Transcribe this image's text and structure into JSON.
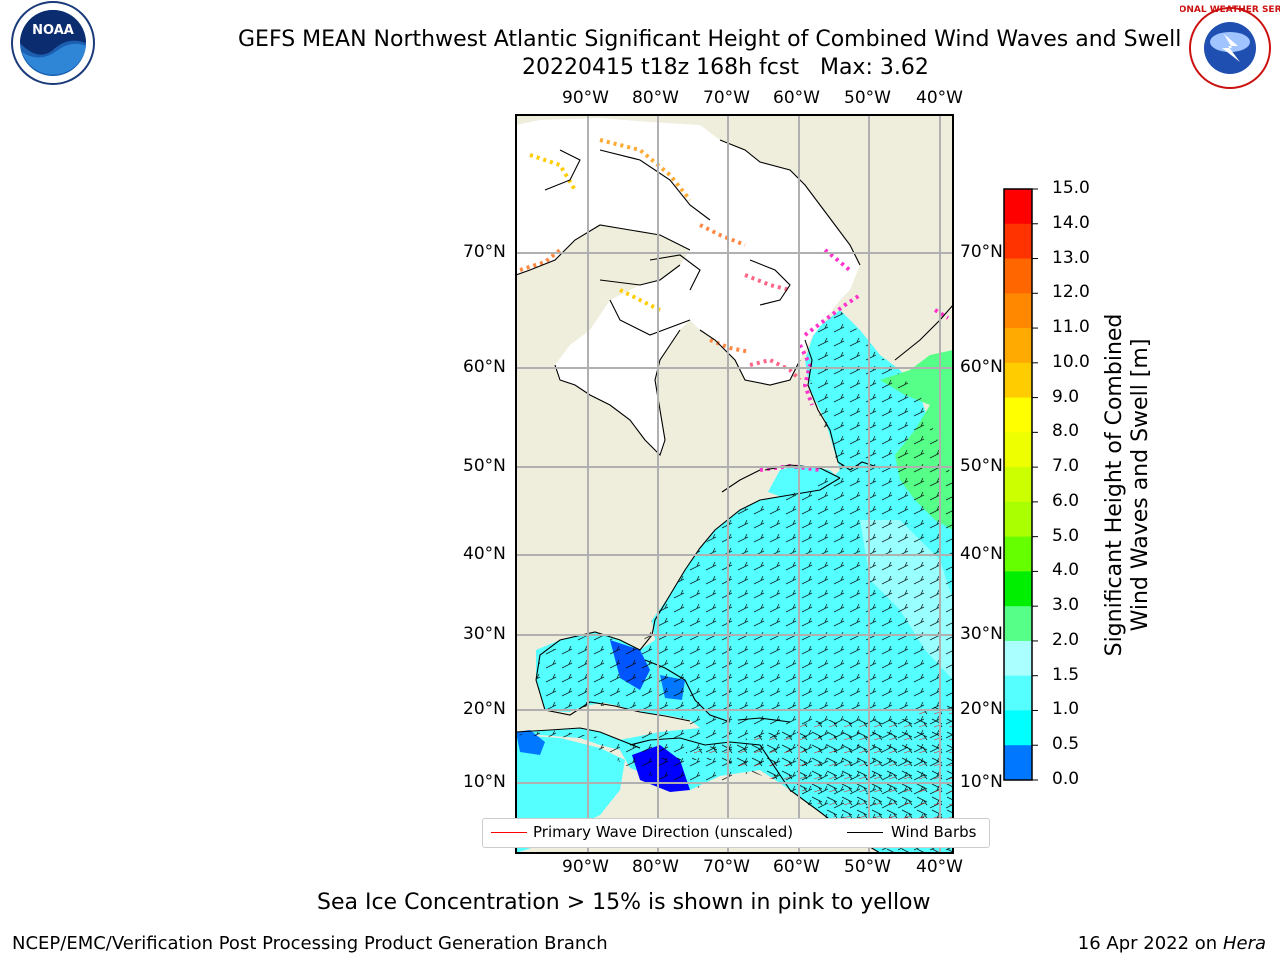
{
  "title": "GEFS MEAN Northwest Atlantic Significant Height of Combined Wind Waves and Swell",
  "subtitle": "20220415 t18z 168h fcst   Max: 3.62",
  "logos": {
    "left": {
      "name": "noaa-logo",
      "text": "NOAA"
    },
    "right": {
      "name": "nws-logo",
      "text": "NATIONAL WEATHER SERVICE"
    }
  },
  "map": {
    "lon_labels_top": [
      "90°W",
      "80°W",
      "70°W",
      "60°W",
      "50°W",
      "40°W"
    ],
    "lon_labels_bottom": [
      "90°W",
      "80°W",
      "70°W",
      "60°W",
      "50°W",
      "40°W"
    ],
    "lat_labels_left": [
      "70°N",
      "60°N",
      "50°N",
      "40°N",
      "30°N",
      "20°N",
      "10°N"
    ],
    "lat_labels_right": [
      "70°N",
      "60°N",
      "50°N",
      "40°N",
      "30°N",
      "20°N",
      "10°N"
    ],
    "land_color": "#efeddb",
    "ice_color": "#ffffff",
    "grid_color": "#b0b0b0"
  },
  "colorbar": {
    "label_line1": "Significant Height of Combined",
    "label_line2": "Wind Waves and Swell [m]",
    "ticks": [
      "15.0",
      "14.0",
      "13.0",
      "12.0",
      "11.0",
      "10.0",
      "9.0",
      "8.0",
      "7.0",
      "6.0",
      "5.0",
      "4.0",
      "3.0",
      "2.0",
      "1.5",
      "1.0",
      "0.5",
      "0.0"
    ],
    "colors_top_to_bottom": [
      "#ff0000",
      "#ff3300",
      "#ff6600",
      "#ff8800",
      "#ffaa00",
      "#ffcc00",
      "#ffff00",
      "#eeff00",
      "#ccff00",
      "#aaff00",
      "#66ff00",
      "#00ee00",
      "#55ff88",
      "#aaffff",
      "#55ffff",
      "#00ffff",
      "#0077ff",
      "#0000ff"
    ]
  },
  "legend": {
    "primary_wave_label": "Primary Wave Direction (unscaled)",
    "primary_wave_color": "#ff0000",
    "wind_barbs_label": "Wind Barbs",
    "wind_barbs_color": "#000000"
  },
  "footnote": "Sea Ice Concentration > 15% is shown in pink to yellow",
  "credit_left": "NCEP/EMC/Verification Post Processing Product Generation Branch",
  "credit_date": "16 Apr 2022 on",
  "credit_host": "Hera"
}
